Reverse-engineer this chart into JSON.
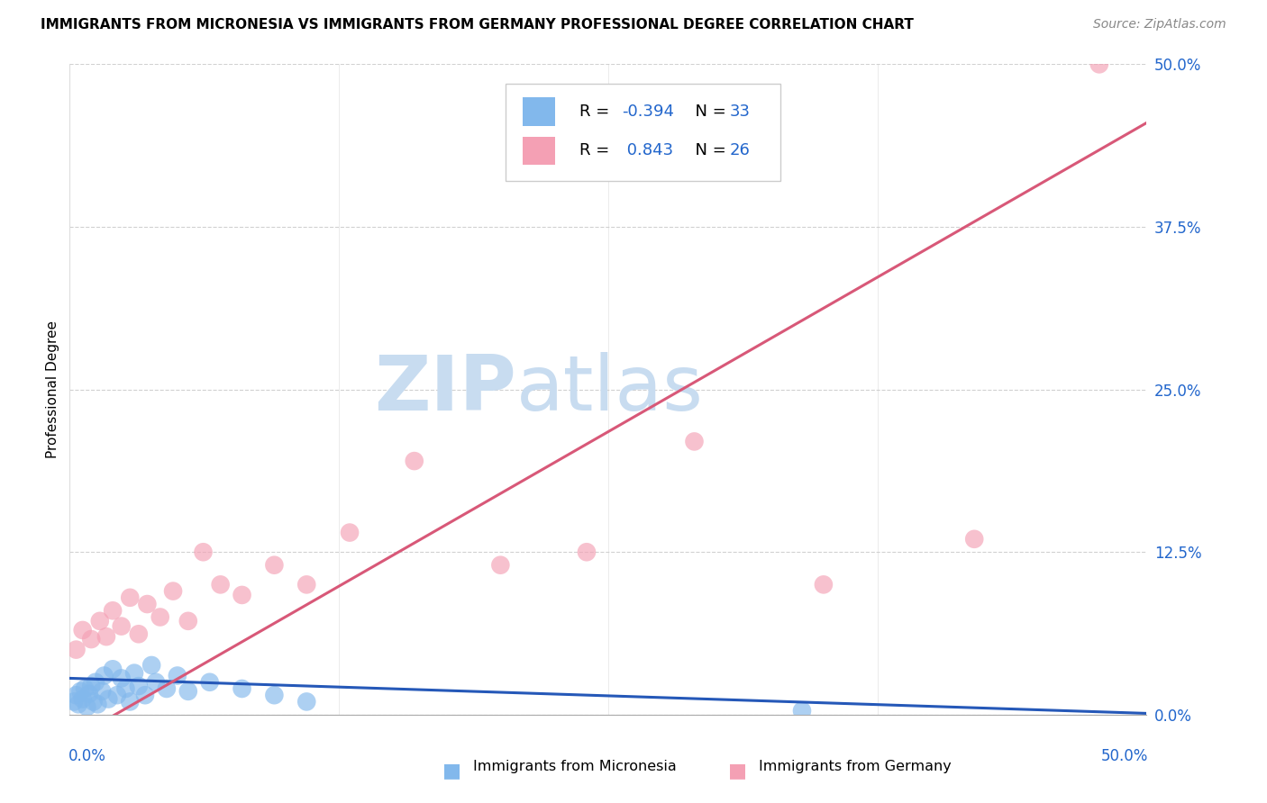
{
  "title": "IMMIGRANTS FROM MICRONESIA VS IMMIGRANTS FROM GERMANY PROFESSIONAL DEGREE CORRELATION CHART",
  "source": "Source: ZipAtlas.com",
  "ylabel": "Professional Degree",
  "y_tick_labels": [
    "0.0%",
    "12.5%",
    "25.0%",
    "37.5%",
    "50.0%"
  ],
  "y_tick_values": [
    0.0,
    0.125,
    0.25,
    0.375,
    0.5
  ],
  "x_range": [
    0.0,
    0.5
  ],
  "y_range": [
    0.0,
    0.5
  ],
  "legend_label1": "Immigrants from Micronesia",
  "legend_label2": "Immigrants from Germany",
  "R1": "-0.394",
  "N1": "33",
  "R2": "0.843",
  "N2": "26",
  "color_blue": "#82B8EC",
  "color_pink": "#F4A0B4",
  "line_color_blue": "#2558B8",
  "line_color_pink": "#D85878",
  "watermark_color": "#C8DCF0",
  "blue_x": [
    0.002,
    0.003,
    0.004,
    0.005,
    0.006,
    0.007,
    0.008,
    0.009,
    0.01,
    0.011,
    0.012,
    0.013,
    0.015,
    0.016,
    0.018,
    0.02,
    0.022,
    0.024,
    0.026,
    0.028,
    0.03,
    0.032,
    0.035,
    0.038,
    0.04,
    0.045,
    0.05,
    0.055,
    0.065,
    0.08,
    0.095,
    0.11,
    0.34
  ],
  "blue_y": [
    0.01,
    0.015,
    0.008,
    0.018,
    0.012,
    0.02,
    0.006,
    0.016,
    0.022,
    0.01,
    0.025,
    0.008,
    0.018,
    0.03,
    0.012,
    0.035,
    0.015,
    0.028,
    0.02,
    0.01,
    0.032,
    0.022,
    0.015,
    0.038,
    0.025,
    0.02,
    0.03,
    0.018,
    0.025,
    0.02,
    0.015,
    0.01,
    0.003
  ],
  "pink_x": [
    0.003,
    0.006,
    0.01,
    0.014,
    0.017,
    0.02,
    0.024,
    0.028,
    0.032,
    0.036,
    0.042,
    0.048,
    0.055,
    0.062,
    0.07,
    0.08,
    0.095,
    0.11,
    0.13,
    0.16,
    0.2,
    0.24,
    0.29,
    0.35,
    0.42,
    0.478
  ],
  "pink_y": [
    0.05,
    0.065,
    0.058,
    0.072,
    0.06,
    0.08,
    0.068,
    0.09,
    0.062,
    0.085,
    0.075,
    0.095,
    0.072,
    0.125,
    0.1,
    0.092,
    0.115,
    0.1,
    0.14,
    0.195,
    0.115,
    0.125,
    0.21,
    0.1,
    0.135,
    0.5
  ],
  "title_fontsize": 11,
  "axis_label_fontsize": 11,
  "tick_fontsize": 12,
  "legend_fontsize": 13
}
